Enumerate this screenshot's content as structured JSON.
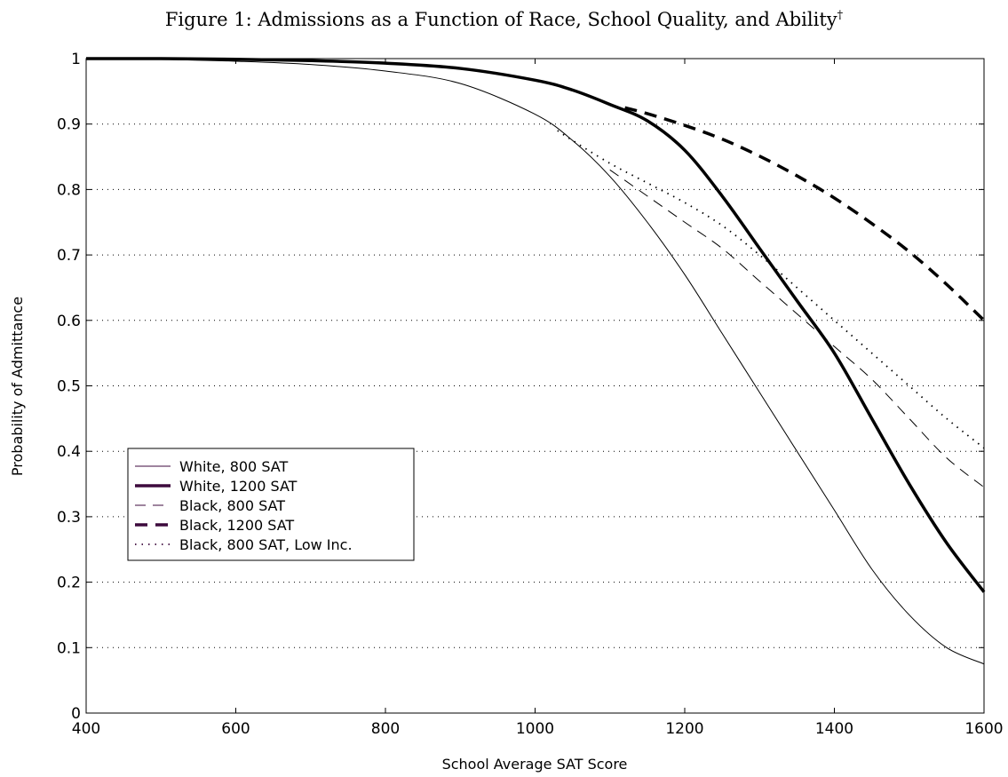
{
  "title": {
    "text": "Figure 1: Admissions as a Function of Race, School Quality, and Ability",
    "marker": "†"
  },
  "chart_data": {
    "type": "line",
    "title": "Figure 1: Admissions as a Function of Race, School Quality, and Ability†",
    "xlabel": "School Average SAT Score",
    "ylabel": "Probability of Admittance",
    "xlim": [
      400,
      1600
    ],
    "ylim": [
      0,
      1
    ],
    "xticks": [
      400,
      600,
      800,
      1000,
      1200,
      1400,
      1600
    ],
    "yticks": [
      0,
      0.1,
      0.2,
      0.3,
      0.4,
      0.5,
      0.6,
      0.7,
      0.8,
      0.9,
      1
    ],
    "grid": "horizontal dotted",
    "legend_position": "lower-left",
    "colors": {
      "line": "#000000",
      "legend_line": "#3d0a3d"
    },
    "series": [
      {
        "name": "White, 800 SAT",
        "style": "thin-solid",
        "x": [
          400,
          500,
          600,
          700,
          800,
          900,
          1000,
          1050,
          1100,
          1150,
          1200,
          1250,
          1300,
          1350,
          1400,
          1450,
          1500,
          1550,
          1600
        ],
        "y": [
          1.0,
          0.999,
          0.996,
          0.991,
          0.981,
          0.962,
          0.915,
          0.875,
          0.82,
          0.75,
          0.67,
          0.58,
          0.49,
          0.4,
          0.31,
          0.22,
          0.15,
          0.1,
          0.075
        ]
      },
      {
        "name": "White, 1200 SAT",
        "style": "thick-solid",
        "x": [
          400,
          500,
          600,
          700,
          800,
          900,
          1000,
          1050,
          1100,
          1150,
          1200,
          1250,
          1300,
          1350,
          1400,
          1450,
          1500,
          1550,
          1600
        ],
        "y": [
          1.0,
          1.0,
          0.999,
          0.997,
          0.993,
          0.985,
          0.967,
          0.952,
          0.93,
          0.905,
          0.86,
          0.79,
          0.71,
          0.63,
          0.55,
          0.45,
          0.35,
          0.26,
          0.185
        ]
      },
      {
        "name": "Black, 800 SAT",
        "style": "thin-dashed",
        "x": [
          1100,
          1150,
          1200,
          1250,
          1300,
          1350,
          1400,
          1450,
          1500,
          1550,
          1600
        ],
        "y": [
          0.83,
          0.79,
          0.75,
          0.71,
          0.66,
          0.61,
          0.56,
          0.51,
          0.45,
          0.39,
          0.345
        ]
      },
      {
        "name": "Black, 1200 SAT",
        "style": "thick-dashed",
        "x": [
          1120,
          1150,
          1200,
          1250,
          1300,
          1350,
          1400,
          1450,
          1500,
          1550,
          1600
        ],
        "y": [
          0.925,
          0.916,
          0.898,
          0.877,
          0.851,
          0.821,
          0.787,
          0.748,
          0.705,
          0.655,
          0.6
        ]
      },
      {
        "name": "Black, 800 SAT, Low Inc.",
        "style": "dotted",
        "x": [
          1030,
          1050,
          1100,
          1150,
          1200,
          1250,
          1300,
          1350,
          1400,
          1450,
          1500,
          1550,
          1600
        ],
        "y": [
          0.89,
          0.875,
          0.84,
          0.81,
          0.78,
          0.745,
          0.7,
          0.65,
          0.6,
          0.55,
          0.5,
          0.45,
          0.405
        ]
      }
    ]
  }
}
